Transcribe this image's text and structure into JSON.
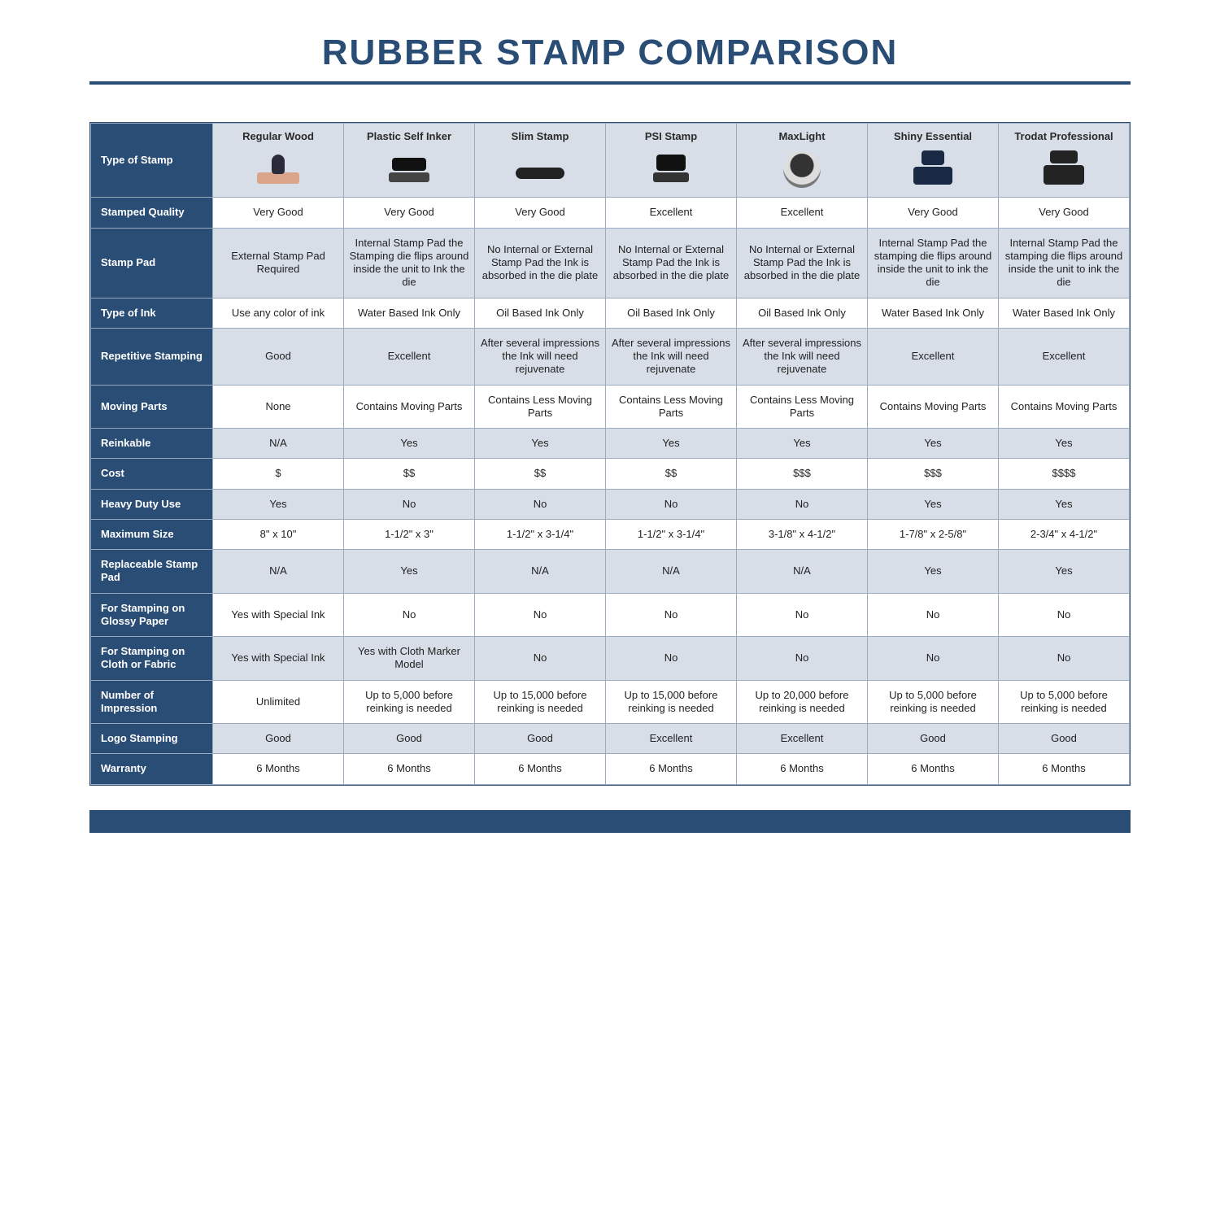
{
  "title": "RUBBER STAMP COMPARISON",
  "colors": {
    "header_bg": "#2a4d75",
    "header_text": "#ffffff",
    "shade_bg": "#d7dee8",
    "plain_bg": "#ffffff",
    "border": "#9aaabf",
    "title_color": "#2a4d75"
  },
  "columns": [
    {
      "label": "Regular Wood",
      "icon": "ic-wood"
    },
    {
      "label": "Plastic Self Inker",
      "icon": "ic-self"
    },
    {
      "label": "Slim Stamp",
      "icon": "ic-slim"
    },
    {
      "label": "PSI Stamp",
      "icon": "ic-psi"
    },
    {
      "label": "MaxLight",
      "icon": "ic-max"
    },
    {
      "label": "Shiny Essential",
      "icon": "ic-shiny"
    },
    {
      "label": "Trodat Professional",
      "icon": "ic-trodat"
    }
  ],
  "header_row_label": "Type of Stamp",
  "rows": [
    {
      "label": "Stamped Quality",
      "shade": false,
      "cells": [
        "Very Good",
        "Very Good",
        "Very Good",
        "Excellent",
        "Excellent",
        "Very Good",
        "Very Good"
      ]
    },
    {
      "label": "Stamp Pad",
      "shade": true,
      "cells": [
        "External Stamp Pad Required",
        "Internal Stamp Pad the Stamping die flips around inside the unit to Ink the die",
        "No Internal or External Stamp Pad the Ink is absorbed in the die plate",
        "No Internal or External Stamp Pad the Ink is absorbed in the die plate",
        "No Internal or External Stamp Pad the Ink is absorbed in the die plate",
        "Internal Stamp Pad the stamping die flips around inside the unit to ink the die",
        "Internal Stamp Pad the stamping die flips around inside the unit to ink the die"
      ]
    },
    {
      "label": "Type of Ink",
      "shade": false,
      "cells": [
        "Use any color of ink",
        "Water Based Ink Only",
        "Oil Based Ink Only",
        "Oil Based Ink Only",
        "Oil Based Ink Only",
        "Water Based Ink Only",
        "Water Based Ink Only"
      ]
    },
    {
      "label": "Repetitive Stamping",
      "shade": true,
      "cells": [
        "Good",
        "Excellent",
        "After several impressions the Ink will need rejuvenate",
        "After several impressions the Ink will need rejuvenate",
        "After several impressions the Ink will need rejuvenate",
        "Excellent",
        "Excellent"
      ]
    },
    {
      "label": "Moving Parts",
      "shade": false,
      "cells": [
        "None",
        "Contains Moving Parts",
        "Contains Less Moving Parts",
        "Contains Less Moving Parts",
        "Contains Less Moving Parts",
        "Contains Moving Parts",
        "Contains Moving Parts"
      ]
    },
    {
      "label": "Reinkable",
      "shade": true,
      "cells": [
        "N/A",
        "Yes",
        "Yes",
        "Yes",
        "Yes",
        "Yes",
        "Yes"
      ]
    },
    {
      "label": "Cost",
      "shade": false,
      "cells": [
        "$",
        "$$",
        "$$",
        "$$",
        "$$$",
        "$$$",
        "$$$$"
      ]
    },
    {
      "label": "Heavy Duty Use",
      "shade": true,
      "cells": [
        "Yes",
        "No",
        "No",
        "No",
        "No",
        "Yes",
        "Yes"
      ]
    },
    {
      "label": "Maximum Size",
      "shade": false,
      "cells": [
        "8\" x 10\"",
        "1-1/2\" x 3\"",
        "1-1/2\" x 3-1/4\"",
        "1-1/2\" x 3-1/4\"",
        "3-1/8\" x 4-1/2\"",
        "1-7/8\" x 2-5/8\"",
        "2-3/4\" x 4-1/2\""
      ]
    },
    {
      "label": "Replaceable Stamp Pad",
      "shade": true,
      "cells": [
        "N/A",
        "Yes",
        "N/A",
        "N/A",
        "N/A",
        "Yes",
        "Yes"
      ]
    },
    {
      "label": "For Stamping on Glossy Paper",
      "shade": false,
      "cells": [
        "Yes with Special Ink",
        "No",
        "No",
        "No",
        "No",
        "No",
        "No"
      ]
    },
    {
      "label": "For Stamping on Cloth or Fabric",
      "shade": true,
      "cells": [
        "Yes with Special Ink",
        "Yes with Cloth Marker Model",
        "No",
        "No",
        "No",
        "No",
        "No"
      ]
    },
    {
      "label": "Number of Impression",
      "shade": false,
      "cells": [
        "Unlimited",
        "Up to 5,000 before reinking is needed",
        "Up to 15,000 before reinking is needed",
        "Up to 15,000 before reinking is needed",
        "Up to 20,000 before reinking is needed",
        "Up to 5,000 before reinking is needed",
        "Up to 5,000 before reinking is needed"
      ]
    },
    {
      "label": "Logo Stamping",
      "shade": true,
      "cells": [
        "Good",
        "Good",
        "Good",
        "Excellent",
        "Excellent",
        "Good",
        "Good"
      ]
    },
    {
      "label": "Warranty",
      "shade": false,
      "cells": [
        "6 Months",
        "6 Months",
        "6 Months",
        "6 Months",
        "6 Months",
        "6 Months",
        "6 Months"
      ]
    }
  ]
}
